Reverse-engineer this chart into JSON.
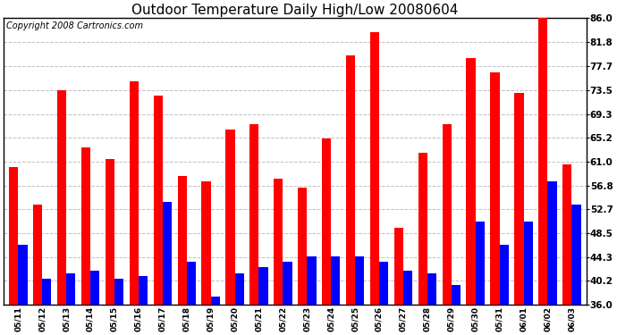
{
  "title": "Outdoor Temperature Daily High/Low 20080604",
  "copyright": "Copyright 2008 Cartronics.com",
  "dates": [
    "05/11",
    "05/12",
    "05/13",
    "05/14",
    "05/15",
    "05/16",
    "05/17",
    "05/18",
    "05/19",
    "05/20",
    "05/21",
    "05/22",
    "05/23",
    "05/24",
    "05/25",
    "05/26",
    "05/27",
    "05/28",
    "05/29",
    "05/30",
    "05/31",
    "06/01",
    "06/02",
    "06/03"
  ],
  "highs": [
    60.0,
    53.5,
    73.5,
    63.5,
    61.5,
    75.0,
    72.5,
    58.5,
    57.5,
    66.5,
    67.5,
    58.0,
    56.5,
    65.0,
    79.5,
    83.5,
    49.5,
    62.5,
    67.5,
    79.0,
    76.5,
    73.0,
    86.0,
    60.5
  ],
  "lows": [
    46.5,
    40.5,
    41.5,
    42.0,
    40.5,
    41.0,
    54.0,
    43.5,
    37.5,
    41.5,
    42.5,
    43.5,
    44.5,
    44.5,
    44.5,
    43.5,
    42.0,
    41.5,
    39.5,
    50.5,
    46.5,
    50.5,
    57.5,
    53.5
  ],
  "yticks": [
    36.0,
    40.2,
    44.3,
    48.5,
    52.7,
    56.8,
    61.0,
    65.2,
    69.3,
    73.5,
    77.7,
    81.8,
    86.0
  ],
  "ymin": 36.0,
  "ymax": 86.0,
  "high_color": "#FF0000",
  "low_color": "#0000FF",
  "bg_color": "#FFFFFF",
  "grid_color": "#C0C0C0",
  "title_fontsize": 11,
  "copyright_fontsize": 7,
  "bar_width": 0.38
}
